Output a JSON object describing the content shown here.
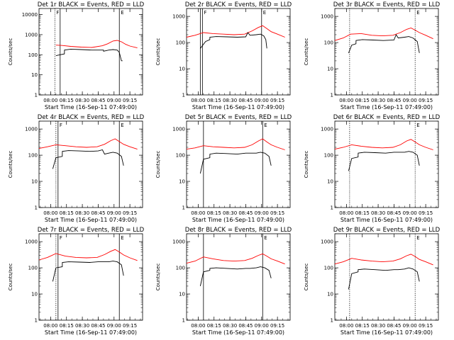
{
  "figure": {
    "colors": {
      "events": "#000000",
      "lld": "#ff0000",
      "axis": "#000000"
    }
  },
  "chart_data": [
    {
      "type": "line",
      "title": "Det 1r BLACK = Events, RED = LLD",
      "xlabel": "Start Time (16-Sep-11 07:49:00)",
      "ylabel": "Counts/sec",
      "yscale": "log",
      "ylim": [
        1,
        20000
      ],
      "yticks": [
        1,
        10,
        100,
        1000,
        10000
      ],
      "ytick_labels": [
        "1",
        "10",
        "100",
        "1000",
        "10000"
      ],
      "xlim_minutes": [
        0,
        98
      ],
      "xticks_minutes": [
        11,
        26,
        41,
        56,
        71,
        86
      ],
      "xtick_labels": [
        "08:00",
        "08:15",
        "08:30",
        "08:45",
        "09:00",
        "09:15"
      ],
      "vlines": [
        {
          "t": 15,
          "label": "F",
          "style": "dotted"
        },
        {
          "t": 20,
          "label": "",
          "style": "solid"
        },
        {
          "t": 76,
          "label": "E",
          "style": "solid"
        }
      ],
      "series": [
        {
          "name": "LLD",
          "color": "#ff0000",
          "t": [
            16,
            22,
            30,
            40,
            50,
            60,
            65,
            70,
            74,
            78,
            82,
            86,
            93
          ],
          "v": [
            300,
            290,
            260,
            240,
            230,
            280,
            350,
            480,
            520,
            440,
            330,
            270,
            220
          ]
        },
        {
          "name": "Events",
          "color": "#000000",
          "t": [
            16,
            20,
            24,
            24.1,
            30,
            40,
            50,
            58,
            61,
            61.1,
            66,
            70,
            74,
            76,
            78,
            79
          ],
          "v": [
            90,
            100,
            110,
            170,
            190,
            180,
            170,
            170,
            170,
            150,
            170,
            180,
            170,
            130,
            50,
            50
          ]
        }
      ]
    },
    {
      "type": "line",
      "title": "Det 2r BLACK = Events, RED = LLD",
      "xlabel": "Start Time (16-Sep-11 07:49:00)",
      "ylabel": "Counts/sec",
      "yscale": "log",
      "ylim": [
        1,
        2000
      ],
      "yticks": [
        1,
        10,
        100,
        1000
      ],
      "ytick_labels": [
        "1",
        "10",
        "100",
        "1000"
      ],
      "xlim_minutes": [
        0,
        98
      ],
      "xticks_minutes": [
        11,
        26,
        41,
        56,
        71,
        86
      ],
      "xtick_labels": [
        "08:00",
        "08:15",
        "08:30",
        "08:45",
        "09:00",
        "09:15"
      ],
      "vlines": [
        {
          "t": 13,
          "label": "",
          "style": "solid"
        },
        {
          "t": 15,
          "label": "F",
          "style": "solid"
        },
        {
          "t": 71,
          "label": "E",
          "style": "solid"
        }
      ],
      "series": [
        {
          "name": "LLD",
          "color": "#ff0000",
          "t": [
            0,
            8,
            16,
            25,
            35,
            45,
            55,
            62,
            68,
            72,
            76,
            80,
            86,
            93
          ],
          "v": [
            160,
            190,
            240,
            220,
            210,
            200,
            210,
            280,
            380,
            440,
            340,
            260,
            210,
            160
          ]
        },
        {
          "name": "Events",
          "color": "#000000",
          "t": [
            13,
            18,
            22,
            22.1,
            28,
            38,
            48,
            56,
            58,
            60,
            66,
            70,
            73,
            75,
            76
          ],
          "v": [
            60,
            110,
            130,
            160,
            170,
            165,
            160,
            165,
            240,
            190,
            200,
            210,
            180,
            130,
            60
          ]
        }
      ]
    },
    {
      "type": "line",
      "title": "Det 3r BLACK = Events, RED = LLD",
      "xlabel": "Start Time (16-Sep-11 07:49:00)",
      "ylabel": "Counts/sec",
      "yscale": "log",
      "ylim": [
        1,
        2000
      ],
      "yticks": [
        1,
        10,
        100,
        1000
      ],
      "ytick_labels": [
        "1",
        "10",
        "100",
        "1000"
      ],
      "xlim_minutes": [
        0,
        98
      ],
      "xticks_minutes": [
        11,
        26,
        41,
        56,
        71,
        86
      ],
      "xtick_labels": [
        "08:00",
        "08:15",
        "08:30",
        "08:45",
        "09:00",
        "09:15"
      ],
      "vlines": [
        {
          "t": 14,
          "label": "",
          "style": "dotted"
        },
        {
          "t": 76,
          "label": "E",
          "style": "dotted"
        }
      ],
      "series": [
        {
          "name": "LLD",
          "color": "#ff0000",
          "t": [
            0,
            8,
            15,
            25,
            35,
            45,
            55,
            62,
            68,
            72,
            76,
            80,
            86,
            93
          ],
          "v": [
            120,
            150,
            210,
            220,
            190,
            180,
            190,
            240,
            320,
            360,
            300,
            240,
            190,
            140
          ]
        },
        {
          "name": "Events",
          "color": "#000000",
          "t": [
            13,
            16,
            20,
            20.1,
            26,
            36,
            46,
            56,
            58,
            60,
            66,
            70,
            74,
            78,
            80
          ],
          "v": [
            40,
            80,
            90,
            120,
            130,
            125,
            120,
            125,
            200,
            150,
            160,
            170,
            150,
            110,
            40
          ]
        }
      ]
    },
    {
      "type": "line",
      "title": "Det 4r BLACK = Events, RED = LLD",
      "xlabel": "Start Time (16-Sep-11 07:49:00)",
      "ylabel": "Counts/sec",
      "yscale": "log",
      "ylim": [
        1,
        2000
      ],
      "yticks": [
        1,
        10,
        100,
        1000
      ],
      "ytick_labels": [
        "1",
        "10",
        "100",
        "1000"
      ],
      "xlim_minutes": [
        0,
        98
      ],
      "xticks_minutes": [
        11,
        26,
        41,
        56,
        71,
        86
      ],
      "xtick_labels": [
        "08:00",
        "08:15",
        "08:30",
        "08:45",
        "09:00",
        "09:15"
      ],
      "vlines": [
        {
          "t": 16,
          "label": "",
          "style": "dotted"
        },
        {
          "t": 18,
          "label": "F",
          "style": "solid"
        },
        {
          "t": 76,
          "label": "E",
          "style": "solid"
        }
      ],
      "series": [
        {
          "name": "LLD",
          "color": "#ff0000",
          "t": [
            0,
            8,
            16,
            25,
            35,
            45,
            55,
            62,
            68,
            72,
            76,
            80,
            86,
            93
          ],
          "v": [
            180,
            210,
            250,
            230,
            210,
            200,
            210,
            260,
            360,
            420,
            330,
            260,
            210,
            170
          ]
        },
        {
          "name": "Events",
          "color": "#000000",
          "t": [
            13,
            16,
            22,
            22.1,
            28,
            38,
            48,
            56,
            60,
            62,
            66,
            70,
            74,
            78,
            80
          ],
          "v": [
            30,
            80,
            90,
            140,
            150,
            145,
            140,
            145,
            160,
            110,
            120,
            130,
            120,
            90,
            40
          ]
        }
      ]
    },
    {
      "type": "line",
      "title": "Det 5r BLACK = Events, RED = LLD",
      "xlabel": "Start Time (16-Sep-11 07:49:00)",
      "ylabel": "Counts/sec",
      "yscale": "log",
      "ylim": [
        1,
        2000
      ],
      "yticks": [
        1,
        10,
        100,
        1000
      ],
      "ytick_labels": [
        "1",
        "10",
        "100",
        "1000"
      ],
      "xlim_minutes": [
        0,
        98
      ],
      "xticks_minutes": [
        11,
        26,
        41,
        56,
        71,
        86
      ],
      "xtick_labels": [
        "08:00",
        "08:15",
        "08:30",
        "08:45",
        "09:00",
        "09:15"
      ],
      "vlines": [
        {
          "t": 16,
          "label": "",
          "style": "solid"
        },
        {
          "t": 72,
          "label": "E",
          "style": "solid"
        }
      ],
      "series": [
        {
          "name": "LLD",
          "color": "#ff0000",
          "t": [
            0,
            8,
            16,
            25,
            35,
            45,
            55,
            62,
            68,
            72,
            76,
            80,
            86,
            93
          ],
          "v": [
            170,
            190,
            230,
            210,
            200,
            190,
            200,
            250,
            350,
            420,
            320,
            250,
            200,
            160
          ]
        },
        {
          "name": "Events",
          "color": "#000000",
          "t": [
            13,
            16,
            22,
            22.1,
            28,
            38,
            48,
            56,
            60,
            66,
            70,
            74,
            78,
            80
          ],
          "v": [
            20,
            70,
            80,
            110,
            120,
            115,
            110,
            120,
            120,
            120,
            130,
            120,
            90,
            40
          ]
        }
      ]
    },
    {
      "type": "line",
      "title": "Det 6r BLACK = Events, RED = LLD",
      "xlabel": "Start Time (16-Sep-11 07:49:00)",
      "ylabel": "Counts/sec",
      "yscale": "log",
      "ylim": [
        1,
        2000
      ],
      "yticks": [
        1,
        10,
        100,
        1000
      ],
      "ytick_labels": [
        "1",
        "10",
        "100",
        "1000"
      ],
      "xlim_minutes": [
        0,
        98
      ],
      "xticks_minutes": [
        11,
        26,
        41,
        56,
        71,
        86
      ],
      "xtick_labels": [
        "08:00",
        "08:15",
        "08:30",
        "08:45",
        "09:00",
        "09:15"
      ],
      "vlines": [
        {
          "t": 14,
          "label": "",
          "style": "dotted"
        },
        {
          "t": 76,
          "label": "E",
          "style": "dotted"
        }
      ],
      "series": [
        {
          "name": "LLD",
          "color": "#ff0000",
          "t": [
            0,
            8,
            16,
            25,
            35,
            45,
            55,
            62,
            68,
            72,
            76,
            80,
            86,
            93
          ],
          "v": [
            170,
            200,
            250,
            220,
            200,
            190,
            200,
            250,
            350,
            400,
            320,
            250,
            200,
            160
          ]
        },
        {
          "name": "Events",
          "color": "#000000",
          "t": [
            13,
            16,
            22,
            22.1,
            28,
            38,
            48,
            56,
            60,
            66,
            70,
            74,
            78,
            80
          ],
          "v": [
            25,
            75,
            85,
            120,
            130,
            125,
            120,
            130,
            130,
            130,
            140,
            130,
            100,
            40
          ]
        }
      ]
    },
    {
      "type": "line",
      "title": "Det 7r BLACK = Events, RED = LLD",
      "xlabel": "Start Time (16-Sep-11 07:49:00)",
      "ylabel": "Counts/sec",
      "yscale": "log",
      "ylim": [
        1,
        2000
      ],
      "yticks": [
        1,
        10,
        100,
        1000
      ],
      "ytick_labels": [
        "1",
        "10",
        "100",
        "1000"
      ],
      "xlim_minutes": [
        0,
        98
      ],
      "xticks_minutes": [
        11,
        26,
        41,
        56,
        71,
        86
      ],
      "xtick_labels": [
        "08:00",
        "08:15",
        "08:30",
        "08:45",
        "09:00",
        "09:15"
      ],
      "vlines": [
        {
          "t": 16,
          "label": "",
          "style": "dotted"
        },
        {
          "t": 18,
          "label": "F",
          "style": "solid"
        },
        {
          "t": 76,
          "label": "E",
          "style": "solid"
        }
      ],
      "series": [
        {
          "name": "LLD",
          "color": "#ff0000",
          "t": [
            0,
            8,
            16,
            25,
            35,
            45,
            55,
            62,
            68,
            72,
            76,
            80,
            86,
            93
          ],
          "v": [
            200,
            250,
            350,
            280,
            250,
            240,
            250,
            320,
            430,
            500,
            400,
            310,
            240,
            190
          ]
        },
        {
          "name": "Events",
          "color": "#000000",
          "t": [
            13,
            16,
            22,
            22.1,
            28,
            38,
            48,
            56,
            60,
            66,
            70,
            74,
            78,
            80
          ],
          "v": [
            30,
            100,
            110,
            160,
            170,
            165,
            160,
            170,
            170,
            170,
            180,
            170,
            130,
            50
          ]
        }
      ]
    },
    {
      "type": "line",
      "title": "Det 8r BLACK = Events, RED = LLD",
      "xlabel": "Start Time (16-Sep-11 07:49:00)",
      "ylabel": "Counts/sec",
      "yscale": "log",
      "ylim": [
        1,
        2000
      ],
      "yticks": [
        1,
        10,
        100,
        1000
      ],
      "ytick_labels": [
        "1",
        "10",
        "100",
        "1000"
      ],
      "xlim_minutes": [
        0,
        98
      ],
      "xticks_minutes": [
        11,
        26,
        41,
        56,
        71,
        86
      ],
      "xtick_labels": [
        "08:00",
        "08:15",
        "08:30",
        "08:45",
        "09:00",
        "09:15"
      ],
      "vlines": [
        {
          "t": 16,
          "label": "",
          "style": "solid"
        },
        {
          "t": 72,
          "label": "E",
          "style": "solid"
        }
      ],
      "series": [
        {
          "name": "LLD",
          "color": "#ff0000",
          "t": [
            0,
            8,
            16,
            25,
            35,
            45,
            55,
            62,
            68,
            72,
            76,
            80,
            86,
            93
          ],
          "v": [
            150,
            180,
            260,
            220,
            190,
            180,
            190,
            230,
            300,
            340,
            280,
            220,
            180,
            140
          ]
        },
        {
          "name": "Events",
          "color": "#000000",
          "t": [
            13,
            16,
            22,
            22.1,
            28,
            38,
            48,
            56,
            60,
            66,
            70,
            74,
            78,
            80
          ],
          "v": [
            20,
            70,
            80,
            95,
            100,
            95,
            90,
            95,
            95,
            100,
            110,
            100,
            80,
            40
          ]
        }
      ]
    },
    {
      "type": "line",
      "title": "Det 9r BLACK = Events, RED = LLD",
      "xlabel": "Start Time (16-Sep-11 07:49:00)",
      "ylabel": "Counts/sec",
      "yscale": "log",
      "ylim": [
        1,
        2000
      ],
      "yticks": [
        1,
        10,
        100,
        1000
      ],
      "ytick_labels": [
        "1",
        "10",
        "100",
        "1000"
      ],
      "xlim_minutes": [
        0,
        98
      ],
      "xticks_minutes": [
        11,
        26,
        41,
        56,
        71,
        86
      ],
      "xtick_labels": [
        "08:00",
        "08:15",
        "08:30",
        "08:45",
        "09:00",
        "09:15"
      ],
      "vlines": [
        {
          "t": 14,
          "label": "",
          "style": "dotted"
        },
        {
          "t": 76,
          "label": "E",
          "style": "dotted"
        }
      ],
      "series": [
        {
          "name": "LLD",
          "color": "#ff0000",
          "t": [
            0,
            8,
            16,
            25,
            35,
            45,
            55,
            62,
            68,
            72,
            76,
            80,
            86,
            93
          ],
          "v": [
            140,
            170,
            230,
            200,
            180,
            170,
            180,
            220,
            290,
            330,
            270,
            210,
            170,
            130
          ]
        },
        {
          "name": "Events",
          "color": "#000000",
          "t": [
            13,
            16,
            22,
            22.1,
            28,
            38,
            48,
            56,
            60,
            66,
            70,
            74,
            78,
            80
          ],
          "v": [
            15,
            60,
            70,
            85,
            90,
            85,
            80,
            85,
            85,
            90,
            100,
            90,
            70,
            30
          ]
        }
      ]
    }
  ]
}
